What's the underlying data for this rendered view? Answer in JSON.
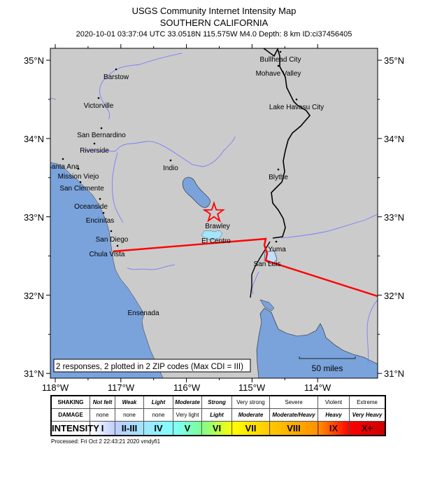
{
  "header": {
    "title": "USGS Community Internet Intensity Map",
    "region": "SOUTHERN CALIFORNIA",
    "event_line": "2020-10-01 03:37:04 UTC 33.0518N 115.575W M4.0 Depth: 8 km ID:ci37456405"
  },
  "map": {
    "lon_labels": [
      "118°W",
      "117°W",
      "116°W",
      "115°W",
      "114°W"
    ],
    "lat_labels": [
      "35°N",
      "34°N",
      "33°N",
      "32°N",
      "31°N"
    ],
    "cities": [
      "Barstow",
      "Victorville",
      "San Bernardino",
      "Riverside",
      "Santa Ana",
      "Mission Viejo",
      "San Clemente",
      "Oceanside",
      "Encinitas",
      "San Diego",
      "Chula Vista",
      "Indio",
      "Brawley",
      "El Centro",
      "Bullhead City",
      "Mohave Valley",
      "Lake Havasu City",
      "Blythe",
      "Yuma",
      "San Luis",
      "Ensenada"
    ],
    "epicenter_icon": "star-icon",
    "summary": "2 responses, 2 plotted in 2 ZIP codes (Max CDI = III)",
    "scale_label": "50 miles",
    "colors": {
      "land": "#cbcbcb",
      "water": "#7aa3dc",
      "river": "#7b7bff",
      "epicenter": "#ff0000",
      "cdi_ii_iii": "#bfccff",
      "cdi_ii_iii_light": "#a0e6ff"
    }
  },
  "legend": {
    "row_labels": [
      "SHAKING",
      "DAMAGE",
      "INTENSITY"
    ],
    "shaking": [
      "Not felt",
      "Weak",
      "Light",
      "Moderate",
      "Strong",
      "Very strong",
      "Severe",
      "Violent",
      "Extreme"
    ],
    "damage": [
      "none",
      "none",
      "none",
      "Very light",
      "Light",
      "Moderate",
      "Moderate/Heavy",
      "Heavy",
      "Very Heavy"
    ],
    "intensity": [
      "I",
      "II-III",
      "IV",
      "V",
      "VI",
      "VII",
      "VIII",
      "IX",
      "X+"
    ],
    "colors": [
      "#ffffff",
      "#bfccff",
      "#a0e6ff",
      "#80ffff",
      "#7aff93",
      "#ffff00",
      "#ffc800",
      "#ff9100",
      "#ff0000",
      "#c80000"
    ]
  },
  "footer": {
    "processed": "Processed: Fri Oct  2 22:43:21 2020 vmdyfi1"
  }
}
